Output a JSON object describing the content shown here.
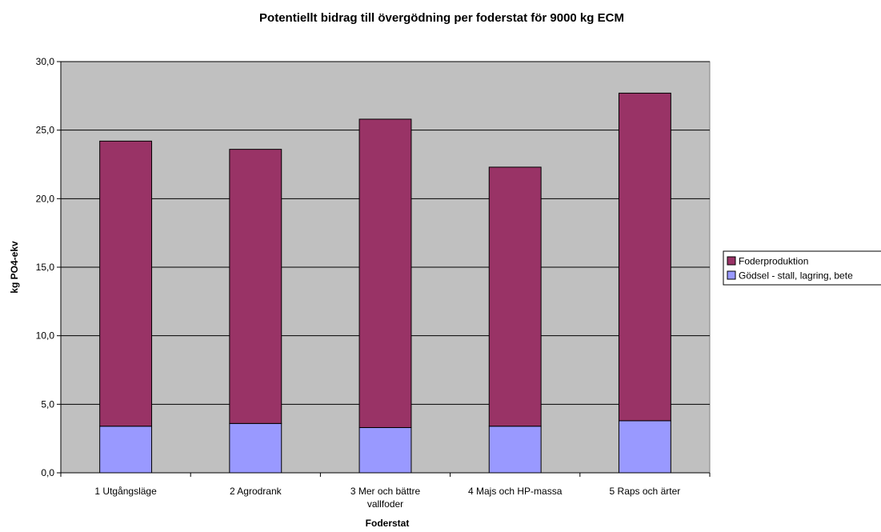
{
  "chart_data": {
    "type": "bar",
    "stacked": true,
    "title": "Potentiellt bidrag till övergödning per foderstat för 9000 kg ECM",
    "xlabel": "Foderstat",
    "ylabel": "kg PO4-ekv",
    "ylim": [
      0,
      30
    ],
    "yticks": [
      "0,0",
      "5,0",
      "10,0",
      "15,0",
      "20,0",
      "25,0",
      "30,0"
    ],
    "categories": [
      [
        "1 Utgångsläge"
      ],
      [
        "2 Agrodrank"
      ],
      [
        "3 Mer och bättre",
        "vallfoder"
      ],
      [
        "4 Majs och HP-massa"
      ],
      [
        "5 Raps och ärter"
      ]
    ],
    "series": [
      {
        "name": "Gödsel - stall, lagring, bete",
        "color": "#9999ff",
        "values": [
          3.4,
          3.6,
          3.3,
          3.4,
          3.8
        ]
      },
      {
        "name": "Foderproduktion",
        "color": "#993366",
        "values": [
          20.8,
          20.0,
          22.5,
          18.9,
          23.9
        ]
      }
    ],
    "legend_order": [
      "Foderproduktion",
      "Gödsel - stall, lagring, bete"
    ],
    "grid": true,
    "legend_position": "right",
    "plot_background": "#c0c0c0"
  }
}
